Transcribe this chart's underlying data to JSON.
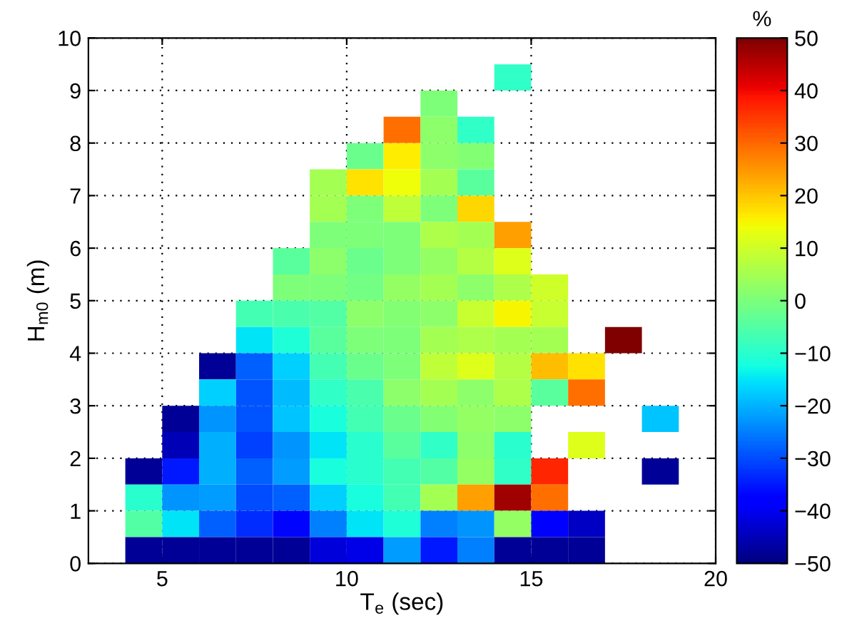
{
  "chart_data": {
    "type": "heatmap",
    "xlabel": "T$_{e}$ (sec)",
    "ylabel": "H$_{m0}$ (m)",
    "clabel": "%",
    "x": [
      4.5,
      5.5,
      6.5,
      7.5,
      8.5,
      9.5,
      10.5,
      11.5,
      12.5,
      13.5,
      14.5,
      15.5,
      16.5,
      17.5,
      18.5
    ],
    "y": [
      9.25,
      8.75,
      8.25,
      7.75,
      7.25,
      6.75,
      6.25,
      5.75,
      5.25,
      4.75,
      4.25,
      3.75,
      3.25,
      2.75,
      2.25,
      1.75,
      1.25,
      0.75,
      0.25
    ],
    "cells": [
      [
        null,
        null,
        null,
        null,
        null,
        null,
        null,
        null,
        null,
        null,
        -9,
        null,
        null,
        null,
        null
      ],
      [
        null,
        null,
        null,
        null,
        null,
        null,
        null,
        null,
        0,
        null,
        null,
        null,
        null,
        null,
        null
      ],
      [
        null,
        null,
        null,
        null,
        null,
        null,
        null,
        29,
        2,
        -9,
        null,
        null,
        null,
        null,
        null
      ],
      [
        null,
        null,
        null,
        null,
        null,
        null,
        -2,
        16,
        2,
        1,
        null,
        null,
        null,
        null,
        null
      ],
      [
        null,
        null,
        null,
        null,
        null,
        5,
        17,
        14,
        5,
        -4,
        null,
        null,
        null,
        null,
        null
      ],
      [
        null,
        null,
        null,
        null,
        null,
        5,
        0,
        8,
        0,
        18,
        null,
        null,
        null,
        null,
        null
      ],
      [
        null,
        null,
        null,
        null,
        null,
        0,
        0,
        0,
        6,
        5,
        24,
        null,
        null,
        null,
        null
      ],
      [
        null,
        null,
        null,
        null,
        -4,
        2,
        -2,
        0,
        3,
        7,
        12,
        null,
        null,
        null,
        null
      ],
      [
        null,
        null,
        null,
        null,
        0,
        0,
        -1,
        3,
        5,
        2,
        6,
        10,
        null,
        null,
        null
      ],
      [
        null,
        null,
        null,
        -7,
        -6,
        -5,
        2,
        1,
        2,
        9,
        15,
        9,
        null,
        null,
        null
      ],
      [
        null,
        null,
        null,
        -15,
        -11,
        -4,
        0,
        0,
        5,
        6,
        5,
        5,
        null,
        50,
        null
      ],
      [
        null,
        null,
        -48,
        -28,
        -17,
        -7,
        -2,
        0,
        8,
        12,
        7,
        21,
        17,
        null,
        null
      ],
      [
        null,
        null,
        -17,
        -29,
        -19,
        -9,
        -6,
        2,
        5,
        2,
        6,
        -4,
        29,
        null,
        null
      ],
      [
        null,
        -48,
        -23,
        -29,
        -18,
        -12,
        -7,
        -2,
        1,
        3,
        2,
        null,
        null,
        null,
        -18
      ],
      [
        null,
        -45,
        -20,
        -31,
        -23,
        -15,
        -10,
        -4,
        -9,
        2,
        -10,
        null,
        12,
        null,
        null
      ],
      [
        -48,
        -35,
        -20,
        -28,
        -22,
        -12,
        -10,
        -7,
        -5,
        3,
        -9,
        37,
        null,
        null,
        -48
      ],
      [
        -10,
        -23,
        -22,
        -30,
        -28,
        -17,
        -12,
        -7,
        5,
        24,
        47,
        29,
        null,
        null,
        null
      ],
      [
        -5,
        -15,
        -28,
        -33,
        -37,
        -25,
        -15,
        -11,
        -25,
        -23,
        3,
        -39,
        -44,
        null,
        null
      ],
      [
        -48,
        -48,
        -48,
        -48,
        -48,
        -42,
        -41,
        -22,
        -35,
        -25,
        -48,
        -48,
        -48,
        null,
        null
      ]
    ],
    "xlim": [
      3,
      20
    ],
    "xticks": [
      5,
      10,
      15,
      20
    ],
    "ylim": [
      0,
      10
    ],
    "yticks": [
      0,
      1,
      2,
      3,
      4,
      5,
      6,
      7,
      8,
      9,
      10
    ],
    "clim": [
      -50,
      50
    ],
    "cticks": [
      -50,
      -40,
      -30,
      -20,
      -10,
      0,
      10,
      20,
      30,
      40,
      50
    ],
    "grid": true
  }
}
